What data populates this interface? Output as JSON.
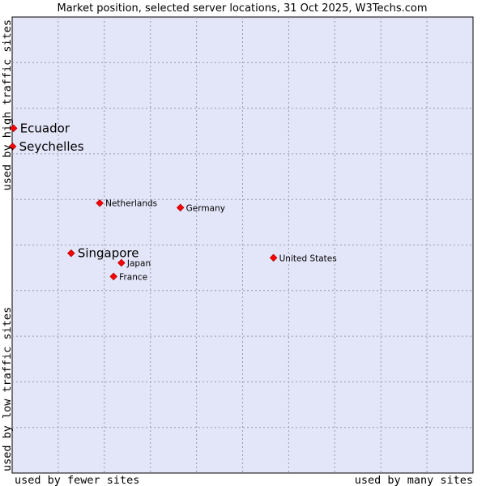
{
  "chart_data": {
    "type": "scatter",
    "title": "Market position, selected server locations, 31 Oct 2025, W3Techs.com",
    "x_label_left": "used by fewer sites",
    "x_label_right": "used by many sites",
    "y_label_top": "used by high traffic sites",
    "y_label_bottom": "used by low traffic sites",
    "x_range": [
      0,
      100
    ],
    "y_range": [
      0,
      100
    ],
    "grid": true,
    "point_color": "#ff0000",
    "plot_background": "#e3e5f8",
    "points": [
      {
        "name": "Ecuador",
        "x": 0.3,
        "y": 75.6,
        "emphasis": true
      },
      {
        "name": "Seychelles",
        "x": 0.1,
        "y": 71.6,
        "emphasis": true
      },
      {
        "name": "Netherlands",
        "x": 19.0,
        "y": 59.2,
        "emphasis": false
      },
      {
        "name": "Germany",
        "x": 36.5,
        "y": 58.2,
        "emphasis": false
      },
      {
        "name": "Singapore",
        "x": 12.8,
        "y": 48.2,
        "emphasis": true
      },
      {
        "name": "Japan",
        "x": 23.7,
        "y": 46.1,
        "emphasis": false
      },
      {
        "name": "France",
        "x": 22.0,
        "y": 43.1,
        "emphasis": false
      },
      {
        "name": "United States",
        "x": 56.7,
        "y": 47.2,
        "emphasis": false
      }
    ]
  }
}
